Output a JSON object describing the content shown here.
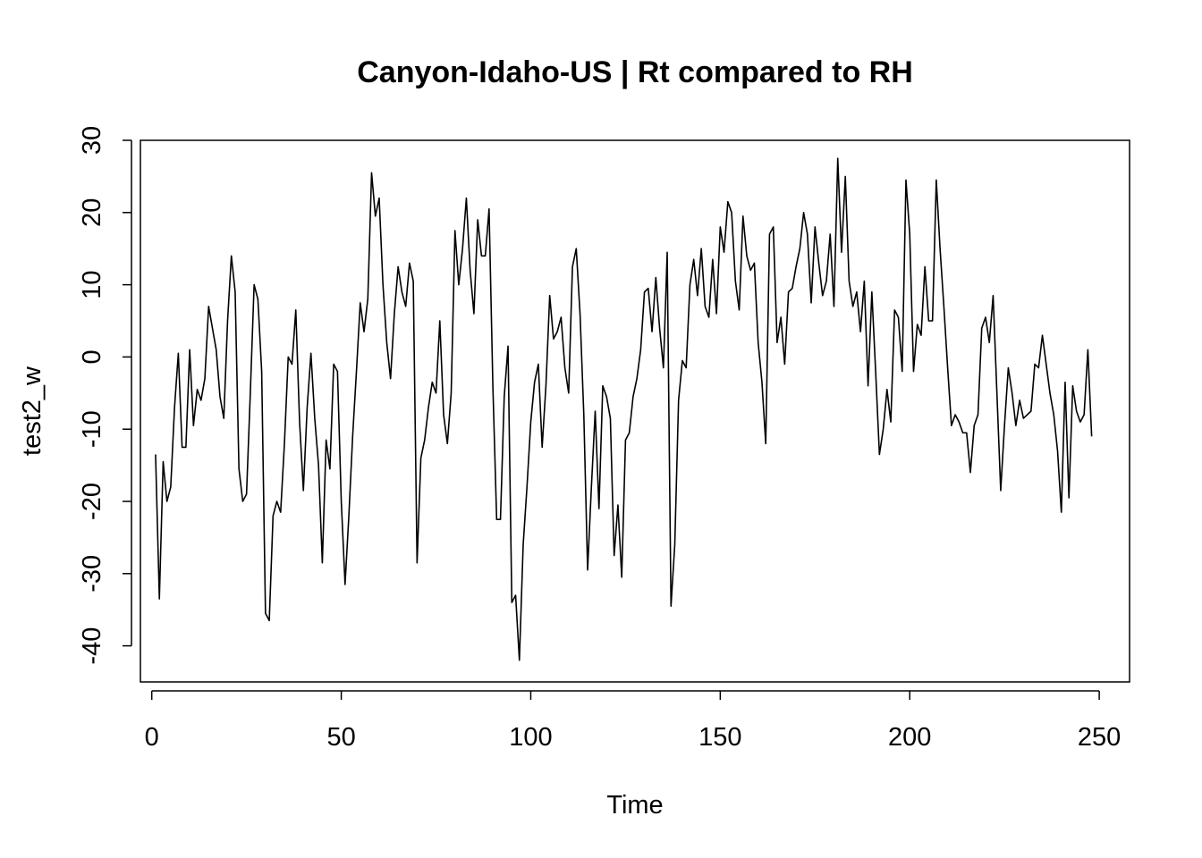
{
  "chart_data": {
    "type": "line",
    "title": "Canyon-Idaho-US | Rt compared to RH",
    "xlabel": "Time",
    "ylabel": "test2_w",
    "xlim": [
      -3,
      258
    ],
    "ylim": [
      -45,
      30
    ],
    "xticks": [
      0,
      50,
      100,
      150,
      200,
      250
    ],
    "xtick_labels": [
      "0",
      "50",
      "100",
      "150",
      "200",
      "250"
    ],
    "yticks": [
      -40,
      -30,
      -20,
      -10,
      0,
      10,
      20,
      30
    ],
    "ytick_labels": [
      "-40",
      "-30",
      "-20",
      "-10",
      "0",
      "10",
      "20",
      "30"
    ],
    "grid": false,
    "legend": "none",
    "line_color": "#000000",
    "series": [
      {
        "x_start": 1,
        "values": [
          -13.5,
          -33.5,
          -14.5,
          -20,
          -18,
          -7,
          0.5,
          -12.5,
          -12.5,
          1,
          -9.5,
          -4.5,
          -6,
          -3,
          7,
          4,
          1,
          -5.5,
          -8.5,
          5,
          14,
          9,
          -15.5,
          -20,
          -19,
          -5,
          10,
          8,
          -2,
          -35.5,
          -36.5,
          -22,
          -20,
          -21.5,
          -12,
          0,
          -1,
          6.5,
          -9,
          -18.5,
          -7,
          0.5,
          -8.5,
          -15,
          -28.5,
          -11.5,
          -15.5,
          -1,
          -2,
          -20,
          -31.5,
          -22,
          -11,
          -2,
          7.5,
          3.5,
          8,
          25.5,
          19.5,
          22,
          10,
          2,
          -3,
          6,
          12.5,
          9,
          7,
          13,
          10.5,
          -28.5,
          -14,
          -11.5,
          -7,
          -3.5,
          -5,
          5,
          -8,
          -12,
          -5,
          17.5,
          10,
          15,
          22,
          12,
          6,
          19,
          14,
          14,
          20.5,
          -4,
          -22.5,
          -22.5,
          -5.5,
          1.5,
          -34,
          -33,
          -42,
          -26,
          -18,
          -9,
          -3.5,
          -1,
          -12.5,
          -4,
          8.5,
          2.5,
          3.5,
          5.5,
          -1.5,
          -5,
          12.5,
          15,
          6,
          -8,
          -29.5,
          -18,
          -7.5,
          -21,
          -4,
          -5.5,
          -8.5,
          -27.5,
          -20.5,
          -30.5,
          -11.5,
          -10.5,
          -5.5,
          -3,
          1,
          9,
          9.5,
          3.5,
          11,
          4,
          -1.5,
          14.5,
          -34.5,
          -26,
          -6,
          -0.5,
          -1.5,
          10,
          13.5,
          8.5,
          15,
          7,
          5.5,
          13.5,
          6,
          18,
          14.5,
          21.5,
          20,
          10.5,
          6.5,
          19.5,
          14,
          12,
          13,
          2,
          -3.5,
          -12,
          17,
          18,
          2,
          5.5,
          -1,
          9,
          9.5,
          12.5,
          15,
          20,
          17,
          7.5,
          18,
          13,
          8.5,
          10.5,
          17,
          7,
          27.5,
          14.5,
          25,
          10.5,
          7,
          9,
          3.5,
          10.5,
          -4,
          9,
          -2,
          -13.5,
          -10,
          -4.5,
          -9,
          6.5,
          5.5,
          -2,
          24.5,
          17,
          -2,
          4.5,
          3,
          12.5,
          5,
          5,
          24.5,
          15,
          7,
          -1.5,
          -9.5,
          -8,
          -9,
          -10.5,
          -10.5,
          -16,
          -9.5,
          -8,
          4,
          5.5,
          2,
          8.5,
          -5,
          -18.5,
          -9.5,
          -1.5,
          -5,
          -9.5,
          -6,
          -8.5,
          -8,
          -7.5,
          -1,
          -1.5,
          3,
          -1,
          -5,
          -8,
          -13,
          -21.5,
          -3.5,
          -19.5,
          -4,
          -7.5,
          -9,
          -8,
          1,
          -11
        ]
      }
    ]
  }
}
